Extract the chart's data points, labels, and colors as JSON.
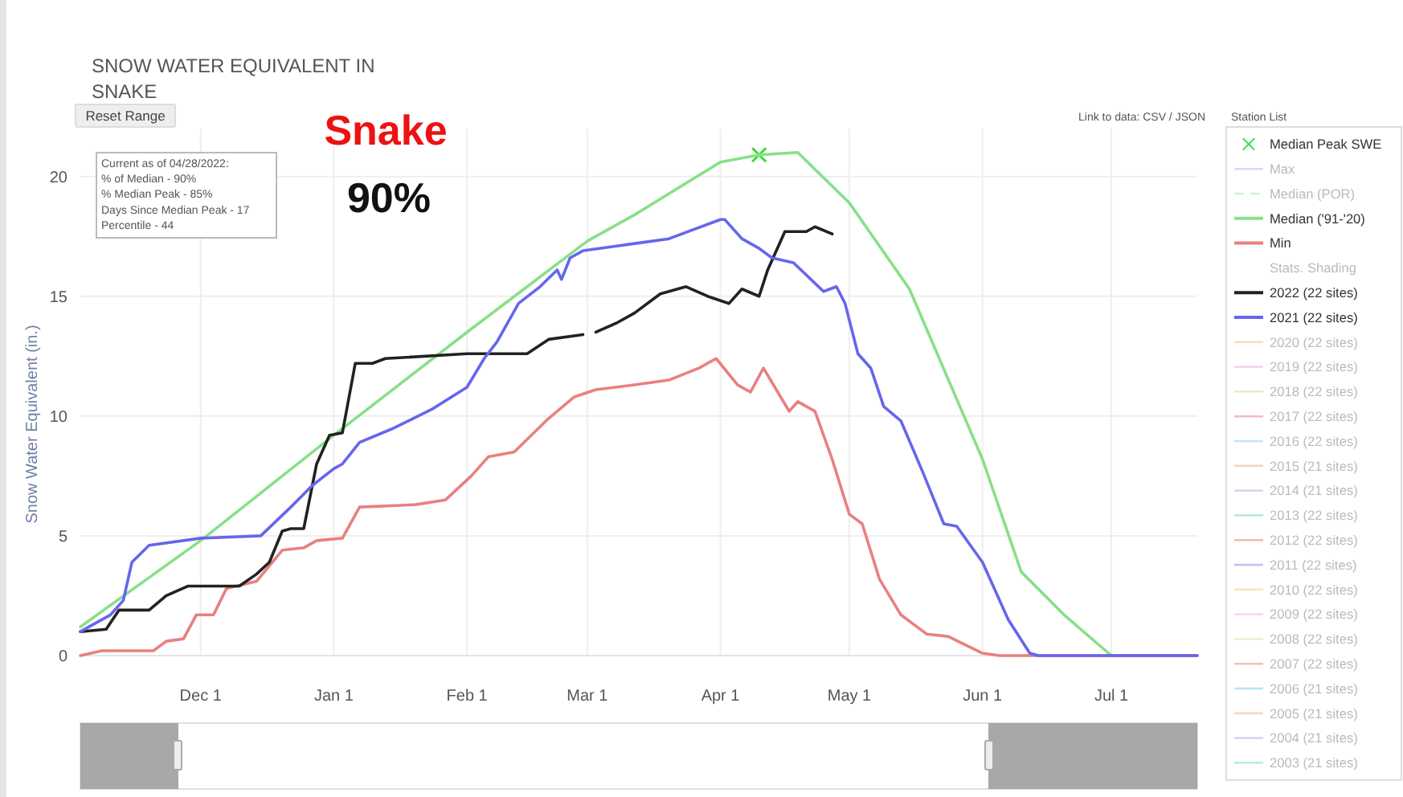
{
  "chart_data": {
    "type": "line",
    "title": "SNOW WATER EQUIVALENT IN SNAKE",
    "ylabel": "Snow Water Equivalent (in.)",
    "legend_title": "Station List",
    "legend": "right",
    "grid": true,
    "xlim": [
      "2021-11-03",
      "2022-07-21"
    ],
    "xticks": [
      {
        "value": "2021-12-01",
        "label": "Dec 1"
      },
      {
        "value": "2022-01-01",
        "label": "Jan 1"
      },
      {
        "value": "2022-02-01",
        "label": "Feb 1"
      },
      {
        "value": "2022-03-01",
        "label": "Mar 1"
      },
      {
        "value": "2022-04-01",
        "label": "Apr 1"
      },
      {
        "value": "2022-05-01",
        "label": "May 1"
      },
      {
        "value": "2022-06-01",
        "label": "Jun 1"
      },
      {
        "value": "2022-07-01",
        "label": "Jul 1"
      }
    ],
    "ylim": [
      0,
      22
    ],
    "yticks": [
      0,
      5,
      10,
      15,
      20
    ],
    "annotations": [
      "Snake",
      "90%",
      "Current as of 04/28/2022:",
      "% of Median - 90%",
      "% Median Peak - 85%",
      "Days Since Median Peak - 17",
      "Percentile - 44",
      "Link to data: CSV / JSON",
      "Reset Range"
    ],
    "series": [
      {
        "name": "Median Peak SWE",
        "type": "scatter",
        "marker": "cross",
        "color": "#33dd33",
        "x": [
          "2022-04-10"
        ],
        "values": [
          20.9
        ]
      },
      {
        "name": "Max",
        "color": "#b8b8ee"
      },
      {
        "name": "Median (POR)",
        "color": "#a8e8a8",
        "line_style": "dashed"
      },
      {
        "name": "Median ('91-'20)",
        "color": "#88e088",
        "x": [
          "2021-11-03",
          "2021-12-01",
          "2022-01-01",
          "2022-02-01",
          "2022-03-01",
          "2022-03-12",
          "2022-04-01",
          "2022-04-10",
          "2022-04-19",
          "2022-05-01",
          "2022-05-15",
          "2022-06-01",
          "2022-06-10",
          "2022-06-20",
          "2022-07-01",
          "2022-07-21"
        ],
        "values": [
          1.2,
          4.8,
          9.2,
          13.5,
          17.3,
          18.4,
          20.6,
          20.9,
          21.0,
          18.9,
          15.3,
          8.2,
          3.5,
          1.7,
          0,
          0
        ]
      },
      {
        "name": "Min",
        "color": "#e88080",
        "x": [
          "2021-11-03",
          "2021-11-08",
          "2021-11-20",
          "2021-11-23",
          "2021-11-27",
          "2021-11-30",
          "2021-12-04",
          "2021-12-07",
          "2021-12-14",
          "2021-12-20",
          "2021-12-25",
          "2021-12-28",
          "2022-01-03",
          "2022-01-07",
          "2022-01-20",
          "2022-01-27",
          "2022-02-02",
          "2022-02-06",
          "2022-02-12",
          "2022-02-20",
          "2022-02-26",
          "2022-03-03",
          "2022-03-12",
          "2022-03-20",
          "2022-03-27",
          "2022-03-31",
          "2022-04-05",
          "2022-04-08",
          "2022-04-11",
          "2022-04-14",
          "2022-04-17",
          "2022-04-19",
          "2022-04-23",
          "2022-04-27",
          "2022-05-01",
          "2022-05-04",
          "2022-05-08",
          "2022-05-13",
          "2022-05-19",
          "2022-05-24",
          "2022-06-01",
          "2022-06-05",
          "2022-07-21"
        ],
        "values": [
          0,
          0.2,
          0.2,
          0.6,
          0.7,
          1.7,
          1.7,
          2.8,
          3.1,
          4.4,
          4.5,
          4.8,
          4.9,
          6.2,
          6.3,
          6.5,
          7.5,
          8.3,
          8.5,
          9.9,
          10.8,
          11.1,
          11.3,
          11.5,
          12.0,
          12.4,
          11.3,
          11.0,
          12.0,
          11.1,
          10.2,
          10.6,
          10.2,
          8.2,
          5.9,
          5.5,
          3.2,
          1.7,
          0.9,
          0.8,
          0.1,
          0,
          0
        ]
      },
      {
        "name": "Stats. Shading"
      },
      {
        "name": "2022 (22 sites)",
        "color": "#222222",
        "x": [
          "2021-11-03",
          "2021-11-09",
          "2021-11-12",
          "2021-11-19",
          "2021-11-23",
          "2021-11-28",
          "2021-12-01",
          "2021-12-10",
          "2021-12-14",
          "2021-12-17",
          "2021-12-20",
          "2021-12-22",
          "2021-12-25",
          "2021-12-28",
          "2021-12-31",
          "2022-01-03",
          "2022-01-06",
          "2022-01-10",
          "2022-01-13",
          "2022-02-01",
          "2022-02-15",
          "2022-02-20",
          "2022-02-28",
          "2022-03-01",
          "2022-03-03",
          "2022-03-08",
          "2022-03-12",
          "2022-03-18",
          "2022-03-24",
          "2022-03-29",
          "2022-04-03",
          "2022-04-06",
          "2022-04-10",
          "2022-04-12",
          "2022-04-16",
          "2022-04-21",
          "2022-04-23",
          "2022-04-27"
        ],
        "values": [
          1.0,
          1.1,
          1.9,
          1.9,
          2.5,
          2.9,
          2.9,
          2.9,
          3.4,
          3.9,
          5.2,
          5.3,
          5.3,
          8.0,
          9.2,
          9.3,
          12.2,
          12.2,
          12.4,
          12.6,
          12.6,
          13.2,
          13.4,
          null,
          13.5,
          13.9,
          14.3,
          15.1,
          15.4,
          15.0,
          14.7,
          15.3,
          15.0,
          16.1,
          17.7,
          17.7,
          17.9,
          17.6
        ]
      },
      {
        "name": "2021 (22 sites)",
        "color": "#6666ee",
        "x": [
          "2021-11-03",
          "2021-11-10",
          "2021-11-13",
          "2021-11-15",
          "2021-11-19",
          "2021-12-01",
          "2021-12-15",
          "2021-12-22",
          "2021-12-27",
          "2022-01-01",
          "2022-01-03",
          "2022-01-07",
          "2022-01-15",
          "2022-01-24",
          "2022-02-01",
          "2022-02-05",
          "2022-02-08",
          "2022-02-13",
          "2022-02-18",
          "2022-02-22",
          "2022-02-23",
          "2022-02-25",
          "2022-02-28",
          "2022-03-12",
          "2022-03-20",
          "2022-04-01",
          "2022-04-02",
          "2022-04-06",
          "2022-04-10",
          "2022-04-13",
          "2022-04-18",
          "2022-04-25",
          "2022-04-28",
          "2022-04-30",
          "2022-05-03",
          "2022-05-06",
          "2022-05-09",
          "2022-05-13",
          "2022-05-18",
          "2022-05-23",
          "2022-05-26",
          "2022-06-01",
          "2022-06-07",
          "2022-06-12",
          "2022-06-14",
          "2022-07-21"
        ],
        "values": [
          1.0,
          1.7,
          2.3,
          3.9,
          4.6,
          4.9,
          5.0,
          6.2,
          7.1,
          7.8,
          8.0,
          8.9,
          9.5,
          10.3,
          11.2,
          12.4,
          13.1,
          14.7,
          15.4,
          16.1,
          15.7,
          16.6,
          16.9,
          17.2,
          17.4,
          18.2,
          18.2,
          17.4,
          17.0,
          16.6,
          16.4,
          15.2,
          15.4,
          14.7,
          12.6,
          12.0,
          10.4,
          9.8,
          7.7,
          5.5,
          5.4,
          3.9,
          1.5,
          0.1,
          0,
          0
        ]
      },
      {
        "name": "2020 (22 sites)",
        "color": "#f5c080"
      },
      {
        "name": "2019 (22 sites)",
        "color": "#f0a0e0"
      },
      {
        "name": "2018 (22 sites)",
        "color": "#d0e080"
      },
      {
        "name": "2017 (22 sites)",
        "color": "#f08090"
      },
      {
        "name": "2016 (22 sites)",
        "color": "#80d8e8"
      },
      {
        "name": "2015 (21 sites)",
        "color": "#f0b080"
      },
      {
        "name": "2014 (21 sites)",
        "color": "#c0a0e0"
      },
      {
        "name": "2013 (22 sites)",
        "color": "#60d0c0"
      },
      {
        "name": "2012 (22 sites)",
        "color": "#e88070"
      },
      {
        "name": "2011 (22 sites)",
        "color": "#9090f0"
      },
      {
        "name": "2010 (22 sites)",
        "color": "#f5d080"
      },
      {
        "name": "2009 (22 sites)",
        "color": "#f0a8e8"
      },
      {
        "name": "2008 (22 sites)",
        "color": "#c8e890"
      },
      {
        "name": "2007 (22 sites)",
        "color": "#f08888"
      },
      {
        "name": "2006 (21 sites)",
        "color": "#70d0f0"
      },
      {
        "name": "2005 (21 sites)",
        "color": "#f0b888"
      },
      {
        "name": "2004 (21 sites)",
        "color": "#b8a0e8"
      },
      {
        "name": "2003 (21 sites)",
        "color": "#70d8c8"
      }
    ]
  }
}
